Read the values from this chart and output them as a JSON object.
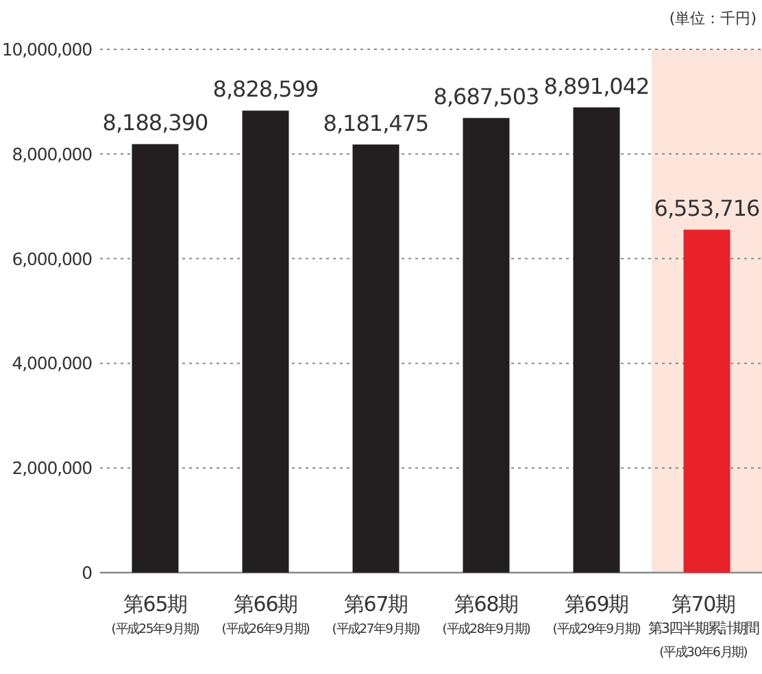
{
  "chart_data": {
    "type": "bar",
    "categories": [
      "第65期\n(平成25年9月期)",
      "第66期\n(平成26年9月期)",
      "第67期\n(平成27年9月期)",
      "第68期\n(平成28年9月期)",
      "第69期\n(平成29年9月期)",
      "第70期第3四半期累計期間\n(平成30年6月期)"
    ],
    "values": [
      8188390,
      8828599,
      8181475,
      8687503,
      8891042,
      6553716
    ],
    "colors": [
      "#231f20",
      "#231f20",
      "#231f20",
      "#231f20",
      "#231f20",
      "#e8212a"
    ],
    "value_labels": [
      "8,188,390",
      "8,828,599",
      "8,181,475",
      "8,687,503",
      "8,891,042",
      "6,553,716"
    ],
    "ylim": [
      0,
      10000000
    ],
    "yticks": [
      {
        "value": 0,
        "label": "0"
      },
      {
        "value": 2000000,
        "label": "2,000,000"
      },
      {
        "value": 4000000,
        "label": "4,000,000"
      },
      {
        "value": 6000000,
        "label": "6,000,000"
      },
      {
        "value": 8000000,
        "label": "8,000,000"
      },
      {
        "value": 10000000,
        "label": "10,000,000"
      }
    ],
    "grid": "y",
    "bands": [
      {
        "axis": "x",
        "from": "第70期第3四半期累計期間\n(平成30年6月期)",
        "to": "第70期第3四半期累計期間\n(平成30年6月期)",
        "color": "#fde5dc"
      }
    ],
    "annotations": [
      "(単位：千円)"
    ]
  }
}
